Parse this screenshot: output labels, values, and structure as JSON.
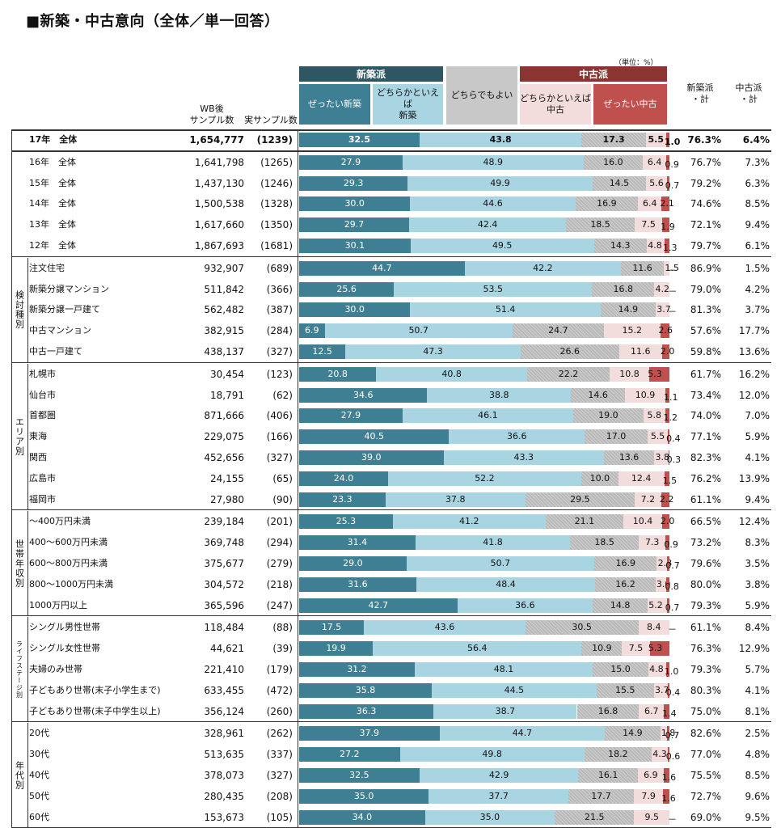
{
  "page_title": "■新築・中古意向（全体／単一回答）",
  "unit_note": "（単位：%）",
  "headers": {
    "wb": [
      "WB後",
      "サンプル数"
    ],
    "real": "実サンプル数",
    "group_new": "新築派",
    "group_old": "中古派",
    "cats": [
      "ぜったい新築",
      "どちらかといえば\n新築",
      "どちらでもよい",
      "どちらかといえば\n中古",
      "ぜったい中古"
    ],
    "sum_new": "新築派\n・計",
    "sum_old": "中古派\n・計"
  },
  "groups": [
    {
      "name": "",
      "rows": [
        {
          "label": "17年　全体",
          "wb": "1,654,777",
          "real": "(1239)",
          "values": [
            32.5,
            43.8,
            17.3,
            5.5,
            1.0
          ],
          "new_total": "76.3%",
          "old_total": "6.4%",
          "bold": true
        }
      ]
    },
    {
      "name": "",
      "rows": [
        {
          "label": "16年　全体",
          "wb": "1,641,798",
          "real": "(1265)",
          "values": [
            27.9,
            48.9,
            16.0,
            6.4,
            0.9
          ],
          "new_total": "76.7%",
          "old_total": "7.3%"
        },
        {
          "label": "15年　全体",
          "wb": "1,437,130",
          "real": "(1246)",
          "values": [
            29.3,
            49.9,
            14.5,
            5.6,
            0.7
          ],
          "new_total": "79.2%",
          "old_total": "6.3%"
        },
        {
          "label": "14年　全体",
          "wb": "1,500,538",
          "real": "(1328)",
          "values": [
            30.0,
            44.6,
            16.9,
            6.4,
            2.1
          ],
          "new_total": "74.6%",
          "old_total": "8.5%"
        },
        {
          "label": "13年　全体",
          "wb": "1,617,660",
          "real": "(1350)",
          "values": [
            29.7,
            42.4,
            18.5,
            7.5,
            1.9
          ],
          "new_total": "72.1%",
          "old_total": "9.4%"
        },
        {
          "label": "12年　全体",
          "wb": "1,867,693",
          "real": "(1681)",
          "values": [
            30.1,
            49.5,
            14.3,
            4.8,
            1.3
          ],
          "new_total": "79.7%",
          "old_total": "6.1%"
        }
      ]
    },
    {
      "name": "検討種別",
      "rows": [
        {
          "label": "注文住宅",
          "wb": "932,907",
          "real": "(689)",
          "values": [
            44.7,
            42.2,
            11.6,
            1.5,
            0
          ],
          "new_total": "86.9%",
          "old_total": "1.5%"
        },
        {
          "label": "新築分譲マンション",
          "wb": "511,842",
          "real": "(366)",
          "values": [
            25.6,
            53.5,
            16.8,
            4.2,
            0
          ],
          "new_total": "79.0%",
          "old_total": "4.2%"
        },
        {
          "label": "新築分譲一戸建て",
          "wb": "562,482",
          "real": "(387)",
          "values": [
            30.0,
            51.4,
            14.9,
            3.7,
            0
          ],
          "new_total": "81.3%",
          "old_total": "3.7%"
        },
        {
          "label": "中古マンション",
          "wb": "382,915",
          "real": "(284)",
          "values": [
            6.9,
            50.7,
            24.7,
            15.2,
            2.6
          ],
          "new_total": "57.6%",
          "old_total": "17.7%"
        },
        {
          "label": "中古一戸建て",
          "wb": "438,137",
          "real": "(327)",
          "values": [
            12.5,
            47.3,
            26.6,
            11.6,
            2.0
          ],
          "new_total": "59.8%",
          "old_total": "13.6%"
        }
      ]
    },
    {
      "name": "エリア別",
      "rows": [
        {
          "label": "札幌市",
          "wb": "30,454",
          "real": "(123)",
          "values": [
            20.8,
            40.8,
            22.2,
            10.8,
            5.3
          ],
          "new_total": "61.7%",
          "old_total": "16.2%"
        },
        {
          "label": "仙台市",
          "wb": "18,791",
          "real": "(62)",
          "values": [
            34.6,
            38.8,
            14.6,
            10.9,
            1.1
          ],
          "new_total": "73.4%",
          "old_total": "12.0%"
        },
        {
          "label": "首都圏",
          "wb": "871,666",
          "real": "(406)",
          "values": [
            27.9,
            46.1,
            19.0,
            5.8,
            1.2
          ],
          "new_total": "74.0%",
          "old_total": "7.0%"
        },
        {
          "label": "東海",
          "wb": "229,075",
          "real": "(166)",
          "values": [
            40.5,
            36.6,
            17.0,
            5.5,
            0.4
          ],
          "new_total": "77.1%",
          "old_total": "5.9%"
        },
        {
          "label": "関西",
          "wb": "452,656",
          "real": "(327)",
          "values": [
            39.0,
            43.3,
            13.6,
            3.8,
            0.3
          ],
          "new_total": "82.3%",
          "old_total": "4.1%"
        },
        {
          "label": "広島市",
          "wb": "24,155",
          "real": "(65)",
          "values": [
            24.0,
            52.2,
            10.0,
            12.4,
            1.5
          ],
          "new_total": "76.2%",
          "old_total": "13.9%"
        },
        {
          "label": "福岡市",
          "wb": "27,980",
          "real": "(90)",
          "values": [
            23.3,
            37.8,
            29.5,
            7.2,
            2.2
          ],
          "new_total": "61.1%",
          "old_total": "9.4%"
        }
      ]
    },
    {
      "name": "世帯年収別",
      "rows": [
        {
          "label": "～400万円未満",
          "wb": "239,184",
          "real": "(201)",
          "values": [
            25.3,
            41.2,
            21.1,
            10.4,
            2.0
          ],
          "new_total": "66.5%",
          "old_total": "12.4%"
        },
        {
          "label": "400～600万円未満",
          "wb": "369,748",
          "real": "(294)",
          "values": [
            31.4,
            41.8,
            18.5,
            7.3,
            0.9
          ],
          "new_total": "73.2%",
          "old_total": "8.3%"
        },
        {
          "label": "600～800万円未満",
          "wb": "375,677",
          "real": "(279)",
          "values": [
            29.0,
            50.7,
            16.9,
            2.8,
            0.7
          ],
          "new_total": "79.6%",
          "old_total": "3.5%"
        },
        {
          "label": "800～1000万円未満",
          "wb": "304,572",
          "real": "(218)",
          "values": [
            31.6,
            48.4,
            16.2,
            3.0,
            0.8
          ],
          "new_total": "80.0%",
          "old_total": "3.8%"
        },
        {
          "label": "1000万円以上",
          "wb": "365,596",
          "real": "(247)",
          "values": [
            42.7,
            36.6,
            14.8,
            5.2,
            0.7
          ],
          "new_total": "79.3%",
          "old_total": "5.9%"
        }
      ]
    },
    {
      "name": "ライフステージ別",
      "rows": [
        {
          "label": "シングル男性世帯",
          "wb": "118,484",
          "real": "(88)",
          "values": [
            17.5,
            43.6,
            30.5,
            8.4,
            0
          ],
          "new_total": "61.1%",
          "old_total": "8.4%"
        },
        {
          "label": "シングル女性世帯",
          "wb": "44,621",
          "real": "(39)",
          "values": [
            19.9,
            56.4,
            10.9,
            7.5,
            5.3
          ],
          "new_total": "76.3%",
          "old_total": "12.9%"
        },
        {
          "label": "夫婦のみ世帯",
          "wb": "221,410",
          "real": "(179)",
          "values": [
            31.2,
            48.1,
            15.0,
            4.8,
            1.0
          ],
          "new_total": "79.3%",
          "old_total": "5.7%"
        },
        {
          "label": "子どもあり世帯(末子小学生まで)",
          "wb": "633,455",
          "real": "(472)",
          "values": [
            35.8,
            44.5,
            15.5,
            3.7,
            0.4
          ],
          "new_total": "80.3%",
          "old_total": "4.1%"
        },
        {
          "label": "子どもあり世帯(末子中学生以上)",
          "wb": "356,124",
          "real": "(260)",
          "values": [
            36.3,
            38.7,
            16.8,
            6.7,
            1.4
          ],
          "new_total": "75.0%",
          "old_total": "8.1%"
        }
      ]
    },
    {
      "name": "年代別",
      "rows": [
        {
          "label": "20代",
          "wb": "328,961",
          "real": "(262)",
          "values": [
            37.9,
            44.7,
            14.9,
            1.8,
            0.7
          ],
          "new_total": "82.6%",
          "old_total": "2.5%"
        },
        {
          "label": "30代",
          "wb": "513,635",
          "real": "(337)",
          "values": [
            27.2,
            49.8,
            18.2,
            4.3,
            0.6
          ],
          "new_total": "77.0%",
          "old_total": "4.8%"
        },
        {
          "label": "40代",
          "wb": "378,073",
          "real": "(327)",
          "values": [
            32.5,
            42.9,
            16.1,
            6.9,
            1.6
          ],
          "new_total": "75.5%",
          "old_total": "8.5%"
        },
        {
          "label": "50代",
          "wb": "280,435",
          "real": "(208)",
          "values": [
            35.0,
            37.7,
            17.7,
            7.9,
            1.6
          ],
          "new_total": "72.7%",
          "old_total": "9.6%"
        },
        {
          "label": "60代",
          "wb": "153,673",
          "real": "(105)",
          "values": [
            34.0,
            35.0,
            21.5,
            9.5,
            0
          ],
          "new_total": "69.0%",
          "old_total": "9.5%"
        }
      ]
    }
  ],
  "chart_data": {
    "type": "bar",
    "orientation": "horizontal-stacked-100",
    "series_names": [
      "ぜったい新築",
      "どちらかといえば新築",
      "どちらでもよい",
      "どちらかといえば中古",
      "ぜったい中古"
    ],
    "colors": [
      "#3f7f93",
      "#a9d5e3",
      "#b8b8b8",
      "#f2dcdc",
      "#c0504d"
    ],
    "header_colors": {
      "group_new": "#2f5663",
      "group_old": "#8b3533",
      "cat_new": "#a9d5e3",
      "cat_new_strong": "#3f7f93",
      "cat_neutral": "#c8c8c8",
      "cat_old": "#f2dcdc",
      "cat_old_strong": "#c0504d"
    },
    "dash_for_zero": "－"
  }
}
